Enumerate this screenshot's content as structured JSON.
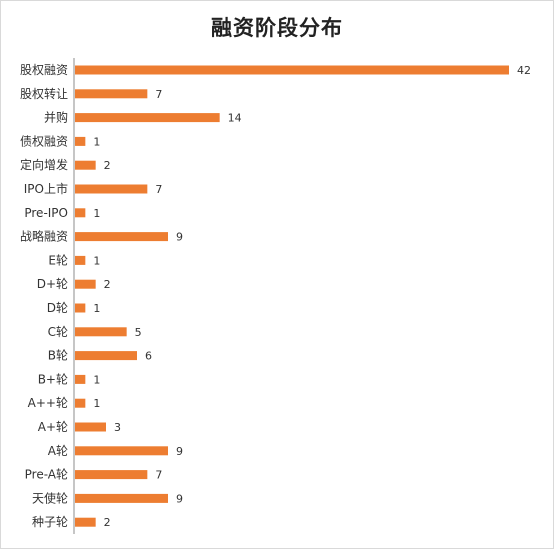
{
  "chart_data": {
    "type": "bar",
    "orientation": "horizontal",
    "title": "融资阶段分布",
    "categories": [
      "股权融资",
      "股权转让",
      "并购",
      "债权融资",
      "定向增发",
      "IPO上市",
      "Pre-IPO",
      "战略融资",
      "E轮",
      "D+轮",
      "D轮",
      "C轮",
      "B轮",
      "B+轮",
      "A++轮",
      "A+轮",
      "A轮",
      "Pre-A轮",
      "天使轮",
      "种子轮"
    ],
    "values": [
      42,
      7,
      14,
      1,
      2,
      7,
      1,
      9,
      1,
      2,
      1,
      5,
      6,
      1,
      1,
      3,
      9,
      7,
      9,
      2
    ],
    "xlim": [
      0,
      45
    ],
    "grid": false,
    "legend": "none",
    "data_labels": true,
    "bar_color": "#ed7d31",
    "axis_color": "#8c8c8c"
  }
}
